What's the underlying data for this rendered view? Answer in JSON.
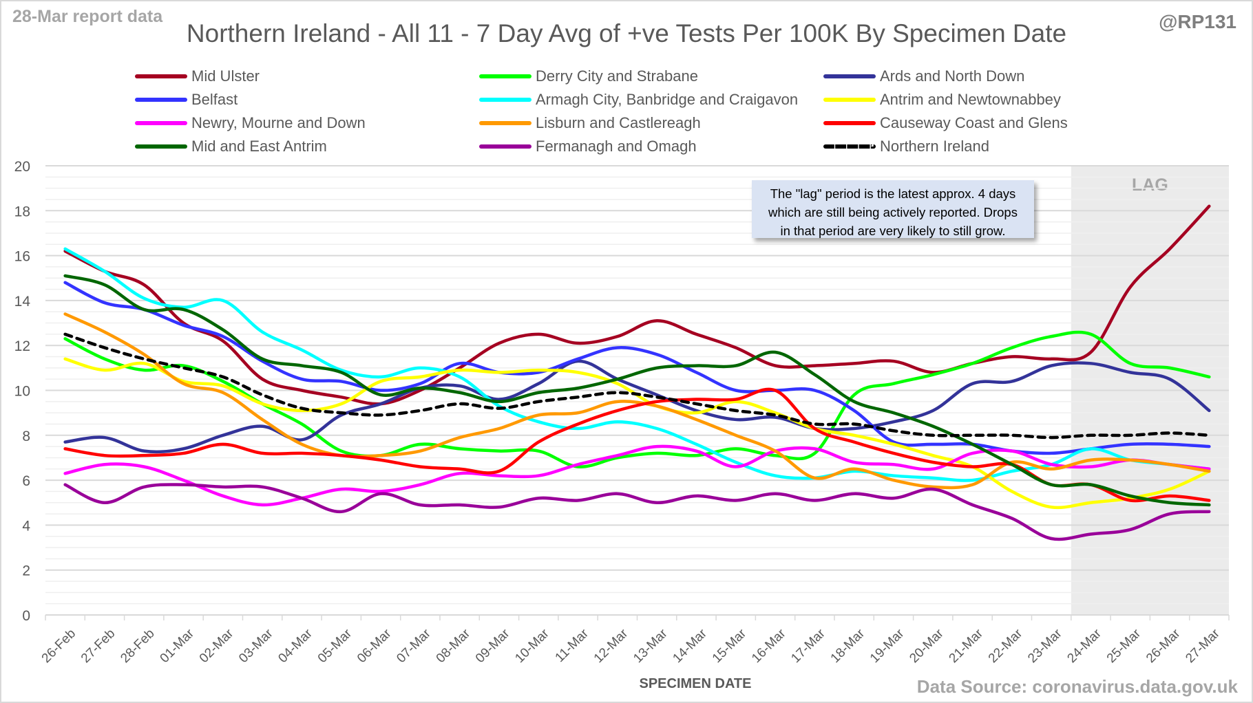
{
  "header": {
    "report_date": "28-Mar report data",
    "handle": "@RP131",
    "title": "Northern Ireland - All 11 - 7 Day Avg of +ve Tests Per 100K By Specimen Date"
  },
  "lag_note": {
    "line1": "The \"lag\" period is the latest approx. 4 days",
    "line2": "which are still being actively reported.  Drops",
    "line3": "in that period are very likely to still grow."
  },
  "footer": {
    "source": "Data Source: coronavirus.data.gov.uk"
  },
  "chart_data": {
    "type": "line",
    "title": "Northern Ireland - All 11 - 7 Day Avg of +ve Tests Per 100K By Specimen Date",
    "xlabel": "SPECIMEN DATE",
    "ylabel": "",
    "ylim": [
      0,
      20
    ],
    "yticks": [
      0,
      2,
      4,
      6,
      8,
      10,
      12,
      14,
      16,
      18,
      20
    ],
    "grid": true,
    "legend_position": "top",
    "lag_region": {
      "label": "LAG",
      "from": "24-Mar",
      "to": "27-Mar"
    },
    "categories": [
      "26-Feb",
      "27-Feb",
      "28-Feb",
      "01-Mar",
      "02-Mar",
      "03-Mar",
      "04-Mar",
      "05-Mar",
      "06-Mar",
      "07-Mar",
      "08-Mar",
      "09-Mar",
      "10-Mar",
      "11-Mar",
      "12-Mar",
      "13-Mar",
      "14-Mar",
      "15-Mar",
      "16-Mar",
      "17-Mar",
      "18-Mar",
      "19-Mar",
      "20-Mar",
      "21-Mar",
      "22-Mar",
      "23-Mar",
      "24-Mar",
      "25-Mar",
      "26-Mar",
      "27-Mar"
    ],
    "series": [
      {
        "name": "Mid Ulster",
        "color": "#a50021",
        "dashed": false,
        "values": [
          16.2,
          15.3,
          14.7,
          13.0,
          12.2,
          10.5,
          10.0,
          9.7,
          9.4,
          10.0,
          11.0,
          12.1,
          12.5,
          12.1,
          12.4,
          13.1,
          12.5,
          11.9,
          11.1,
          11.1,
          11.2,
          11.3,
          10.8,
          11.2,
          11.5,
          11.4,
          11.7,
          14.6,
          16.3,
          18.2
        ]
      },
      {
        "name": "Derry City and Strabane",
        "color": "#00ff00",
        "dashed": false,
        "values": [
          12.3,
          11.4,
          10.9,
          11.1,
          10.4,
          9.4,
          8.5,
          7.3,
          7.1,
          7.6,
          7.4,
          7.3,
          7.3,
          6.6,
          7.0,
          7.2,
          7.1,
          7.4,
          7.1,
          7.2,
          9.8,
          10.3,
          10.7,
          11.2,
          11.9,
          12.4,
          12.5,
          11.2,
          11.0,
          10.6
        ]
      },
      {
        "name": "Ards and North Down",
        "color": "#333399",
        "dashed": false,
        "values": [
          7.7,
          7.9,
          7.3,
          7.4,
          8.0,
          8.4,
          7.8,
          8.9,
          9.4,
          10.1,
          10.2,
          9.6,
          10.3,
          11.3,
          10.5,
          9.8,
          9.1,
          8.7,
          8.8,
          8.3,
          8.3,
          8.6,
          9.1,
          10.3,
          10.4,
          11.1,
          11.2,
          10.8,
          10.5,
          9.1
        ]
      },
      {
        "name": "Belfast",
        "color": "#3333ff",
        "dashed": false,
        "values": [
          14.8,
          13.9,
          13.6,
          12.9,
          12.4,
          11.3,
          10.5,
          10.4,
          10.0,
          10.3,
          11.2,
          10.8,
          10.8,
          11.4,
          11.9,
          11.6,
          10.8,
          10.0,
          10.0,
          10.0,
          9.1,
          7.7,
          7.6,
          7.6,
          7.3,
          7.2,
          7.4,
          7.6,
          7.6,
          7.5
        ]
      },
      {
        "name": "Armagh City, Banbridge and Craigavon",
        "color": "#00ffff",
        "dashed": false,
        "values": [
          16.3,
          15.3,
          14.1,
          13.7,
          14.0,
          12.6,
          11.8,
          10.9,
          10.6,
          11.0,
          10.6,
          9.3,
          8.6,
          8.3,
          8.6,
          8.3,
          7.6,
          6.8,
          6.2,
          6.1,
          6.4,
          6.2,
          6.1,
          6.0,
          6.4,
          6.7,
          7.4,
          6.9,
          6.7,
          6.5
        ]
      },
      {
        "name": "Antrim and Newtownabbey",
        "color": "#ffff00",
        "dashed": false,
        "values": [
          11.4,
          10.9,
          11.2,
          10.4,
          10.2,
          9.4,
          9.1,
          9.4,
          10.4,
          10.6,
          10.9,
          10.8,
          10.9,
          10.8,
          10.3,
          9.3,
          9.0,
          9.5,
          9.0,
          8.3,
          8.0,
          7.6,
          7.1,
          6.6,
          5.5,
          4.8,
          5.0,
          5.2,
          5.6,
          6.4
        ]
      },
      {
        "name": "Newry, Mourne and Down",
        "color": "#ff00ff",
        "dashed": false,
        "values": [
          6.3,
          6.7,
          6.6,
          6.0,
          5.3,
          4.9,
          5.2,
          5.6,
          5.5,
          5.8,
          6.3,
          6.2,
          6.2,
          6.7,
          7.1,
          7.5,
          7.3,
          6.6,
          7.3,
          7.4,
          6.8,
          6.7,
          6.5,
          7.2,
          7.3,
          6.7,
          6.6,
          6.9,
          6.7,
          6.5
        ]
      },
      {
        "name": "Lisburn and Castlereagh",
        "color": "#ff9900",
        "dashed": false,
        "values": [
          13.4,
          12.6,
          11.6,
          10.3,
          9.9,
          8.7,
          7.6,
          7.1,
          7.1,
          7.3,
          7.9,
          8.3,
          8.9,
          9.0,
          9.5,
          9.3,
          8.7,
          8.0,
          7.3,
          6.1,
          6.5,
          6.0,
          5.7,
          5.8,
          6.8,
          6.5,
          6.9,
          6.9,
          6.7,
          6.4
        ]
      },
      {
        "name": "Causeway Coast and Glens",
        "color": "#ff0000",
        "dashed": false,
        "values": [
          7.4,
          7.1,
          7.1,
          7.2,
          7.6,
          7.2,
          7.2,
          7.1,
          6.9,
          6.6,
          6.5,
          6.4,
          7.7,
          8.5,
          9.1,
          9.5,
          9.6,
          9.6,
          10.0,
          8.3,
          7.7,
          7.2,
          6.8,
          6.6,
          6.7,
          5.8,
          5.8,
          5.1,
          5.3,
          5.1
        ]
      },
      {
        "name": "Mid and East Antrim",
        "color": "#006600",
        "dashed": false,
        "values": [
          15.1,
          14.7,
          13.6,
          13.6,
          12.7,
          11.4,
          11.1,
          10.8,
          9.8,
          10.1,
          9.9,
          9.5,
          9.9,
          10.1,
          10.5,
          11.0,
          11.1,
          11.1,
          11.7,
          10.7,
          9.5,
          9.0,
          8.4,
          7.6,
          6.7,
          5.8,
          5.8,
          5.3,
          5.0,
          4.9
        ]
      },
      {
        "name": "Fermanagh and Omagh",
        "color": "#990099",
        "dashed": false,
        "values": [
          5.8,
          5.0,
          5.7,
          5.8,
          5.7,
          5.7,
          5.2,
          4.6,
          5.4,
          4.9,
          4.9,
          4.8,
          5.2,
          5.1,
          5.4,
          5.0,
          5.3,
          5.1,
          5.4,
          5.1,
          5.4,
          5.2,
          5.6,
          4.9,
          4.3,
          3.4,
          3.6,
          3.8,
          4.5,
          4.6
        ]
      },
      {
        "name": "Northern Ireland",
        "color": "#000000",
        "dashed": true,
        "values": [
          12.5,
          11.9,
          11.4,
          11.0,
          10.6,
          9.8,
          9.2,
          9.0,
          8.9,
          9.1,
          9.4,
          9.2,
          9.5,
          9.7,
          9.9,
          9.7,
          9.4,
          9.1,
          8.9,
          8.5,
          8.5,
          8.2,
          8.0,
          8.0,
          8.0,
          7.9,
          8.0,
          8.0,
          8.1,
          8.0
        ]
      }
    ]
  }
}
